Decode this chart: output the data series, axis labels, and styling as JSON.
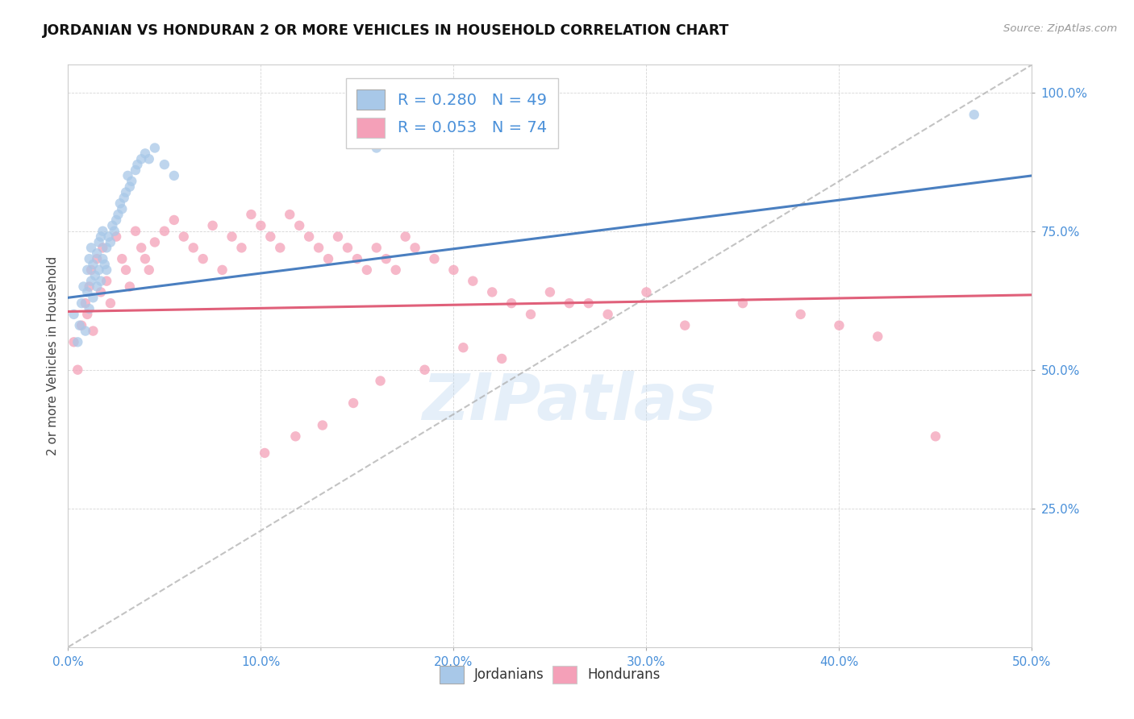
{
  "title": "JORDANIAN VS HONDURAN 2 OR MORE VEHICLES IN HOUSEHOLD CORRELATION CHART",
  "source_text": "Source: ZipAtlas.com",
  "ylabel": "2 or more Vehicles in Household",
  "xlim": [
    0.0,
    50.0
  ],
  "ylim": [
    0.0,
    105.0
  ],
  "xticks": [
    0.0,
    10.0,
    20.0,
    30.0,
    40.0,
    50.0
  ],
  "yticks": [
    25.0,
    50.0,
    75.0,
    100.0
  ],
  "ytick_labels": [
    "25.0%",
    "50.0%",
    "75.0%",
    "100.0%"
  ],
  "xtick_labels": [
    "0.0%",
    "10.0%",
    "20.0%",
    "30.0%",
    "40.0%",
    "50.0%"
  ],
  "watermark": "ZIPatlas",
  "jordanian_color": "#a8c8e8",
  "honduran_color": "#f4a0b8",
  "jordanian_line_color": "#4a7fc0",
  "honduran_line_color": "#e0607a",
  "ref_line_color": "#aaaaaa",
  "R_jordanian": 0.28,
  "N_jordanian": 49,
  "R_honduran": 0.053,
  "N_honduran": 74,
  "legend_label_jordanian": "Jordanians",
  "legend_label_honduran": "Hondurans",
  "jordanian_x": [
    0.3,
    0.5,
    0.6,
    0.7,
    0.8,
    0.9,
    1.0,
    1.0,
    1.1,
    1.1,
    1.2,
    1.2,
    1.3,
    1.3,
    1.4,
    1.5,
    1.5,
    1.6,
    1.6,
    1.7,
    1.7,
    1.8,
    1.8,
    1.9,
    2.0,
    2.0,
    2.1,
    2.2,
    2.3,
    2.4,
    2.5,
    2.6,
    2.7,
    2.8,
    2.9,
    3.0,
    3.1,
    3.2,
    3.3,
    3.5,
    3.6,
    3.8,
    4.0,
    4.2,
    4.5,
    5.0,
    5.5,
    16.0,
    47.0
  ],
  "jordanian_y": [
    60,
    55,
    58,
    62,
    65,
    57,
    64,
    68,
    61,
    70,
    72,
    66,
    63,
    69,
    67,
    65,
    71,
    68,
    73,
    66,
    74,
    70,
    75,
    69,
    72,
    68,
    74,
    73,
    76,
    75,
    77,
    78,
    80,
    79,
    81,
    82,
    85,
    83,
    84,
    86,
    87,
    88,
    89,
    88,
    90,
    87,
    85,
    90,
    96
  ],
  "honduran_x": [
    0.3,
    0.5,
    0.7,
    0.9,
    1.0,
    1.1,
    1.2,
    1.3,
    1.5,
    1.7,
    1.8,
    2.0,
    2.2,
    2.5,
    2.8,
    3.0,
    3.2,
    3.5,
    3.8,
    4.0,
    4.2,
    4.5,
    5.0,
    5.5,
    6.0,
    6.5,
    7.0,
    7.5,
    8.0,
    8.5,
    9.0,
    9.5,
    10.0,
    10.5,
    11.0,
    11.5,
    12.0,
    12.5,
    13.0,
    13.5,
    14.0,
    14.5,
    15.0,
    15.5,
    16.0,
    16.5,
    17.0,
    17.5,
    18.0,
    19.0,
    20.0,
    21.0,
    22.0,
    23.0,
    24.0,
    25.0,
    26.0,
    27.0,
    28.0,
    30.0,
    32.0,
    35.0,
    38.0,
    40.0,
    42.0,
    45.0,
    20.5,
    22.5,
    18.5,
    16.2,
    14.8,
    13.2,
    11.8,
    10.2
  ],
  "honduran_y": [
    55,
    50,
    58,
    62,
    60,
    65,
    68,
    57,
    70,
    64,
    72,
    66,
    62,
    74,
    70,
    68,
    65,
    75,
    72,
    70,
    68,
    73,
    75,
    77,
    74,
    72,
    70,
    76,
    68,
    74,
    72,
    78,
    76,
    74,
    72,
    78,
    76,
    74,
    72,
    70,
    74,
    72,
    70,
    68,
    72,
    70,
    68,
    74,
    72,
    70,
    68,
    66,
    64,
    62,
    60,
    64,
    62,
    62,
    60,
    64,
    58,
    62,
    60,
    58,
    56,
    38,
    54,
    52,
    50,
    48,
    44,
    40,
    38,
    35
  ],
  "jordanian_reg_x0": 0.0,
  "jordanian_reg_y0": 63.0,
  "jordanian_reg_x1": 50.0,
  "jordanian_reg_y1": 85.0,
  "honduran_reg_x0": 0.0,
  "honduran_reg_y0": 60.5,
  "honduran_reg_x1": 50.0,
  "honduran_reg_y1": 63.5,
  "ref_x0": 0.0,
  "ref_y0": 0.0,
  "ref_x1": 50.0,
  "ref_y1": 105.0
}
